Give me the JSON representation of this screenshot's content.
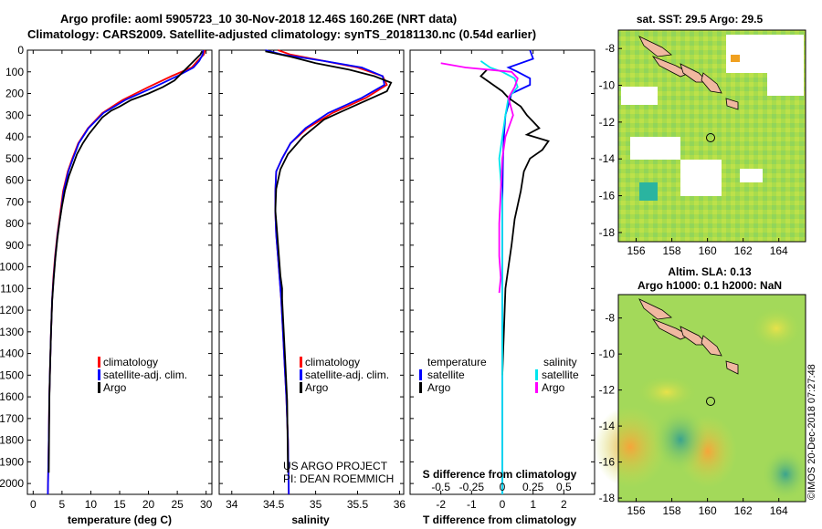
{
  "header": {
    "line1": "Argo profile: aoml 5905723_10 30-Nov-2018 12.46S 160.26E (NRT data)",
    "line2": "Climatology: CARS2009. Satellite-adjusted climatology: synTS_20181130.nc (0.54d earlier)"
  },
  "depth_ticks": [
    "0",
    "100",
    "200",
    "300",
    "400",
    "500",
    "600",
    "700",
    "800",
    "900",
    "1000",
    "1100",
    "1200",
    "1300",
    "1400",
    "1500",
    "1600",
    "1700",
    "1800",
    "1900",
    "2000"
  ],
  "colors": {
    "climatology": "#ff0000",
    "satellite": "#0000ff",
    "argo": "#000000",
    "satellite_s": "#00e5ee",
    "argo_s": "#ff00ff"
  },
  "chart_data": [
    {
      "type": "line",
      "name": "temperature-profile",
      "xlabel": "temperature (deg C)",
      "xlim": [
        -1,
        31
      ],
      "ylim": [
        0,
        2050
      ],
      "y_inverted": true,
      "xticks": [
        "0",
        "5",
        "10",
        "15",
        "20",
        "25",
        "30"
      ],
      "legend": [
        "climatology",
        "satellite-adj. clim.",
        "Argo"
      ],
      "series": [
        {
          "name": "climatology",
          "color": "#ff0000",
          "x": [
            29.8,
            29.6,
            28.5,
            27.5,
            24,
            20,
            15.5,
            12,
            9.5,
            7.8,
            6.8,
            6.0,
            5.2,
            4.7,
            4.2,
            3.8,
            3.5,
            3.3,
            3.1,
            2.95,
            2.8,
            2.7,
            2.55
          ],
          "y": [
            0,
            20,
            50,
            80,
            120,
            170,
            230,
            290,
            360,
            430,
            500,
            560,
            650,
            750,
            850,
            950,
            1050,
            1150,
            1300,
            1450,
            1600,
            1800,
            2050
          ]
        },
        {
          "name": "satellite-adj. clim.",
          "color": "#0000ff",
          "x": [
            29.5,
            29.4,
            28.8,
            27.8,
            25,
            21,
            16,
            12.2,
            9.6,
            7.9,
            6.9,
            6.1,
            5.3,
            4.8,
            4.25,
            3.85,
            3.55,
            3.3,
            3.1,
            2.95,
            2.8,
            2.7,
            2.55
          ],
          "y": [
            0,
            20,
            50,
            80,
            120,
            170,
            230,
            290,
            360,
            430,
            500,
            560,
            650,
            750,
            850,
            950,
            1050,
            1150,
            1300,
            1450,
            1600,
            1800,
            2050
          ]
        },
        {
          "name": "Argo",
          "color": "#000000",
          "x": [
            29.3,
            29.0,
            27.5,
            26.0,
            24.5,
            22.5,
            20,
            17,
            15,
            13.5,
            12,
            10.8,
            9.6,
            8.6,
            7.6,
            6.9,
            6.2,
            5.5,
            5.0,
            4.6,
            4.2,
            3.85,
            3.55,
            3.3,
            3.1,
            2.95,
            2.8,
            2.7
          ],
          "y": [
            5,
            20,
            60,
            100,
            140,
            170,
            200,
            230,
            260,
            280,
            310,
            350,
            390,
            430,
            480,
            530,
            580,
            650,
            720,
            790,
            870,
            960,
            1060,
            1160,
            1300,
            1450,
            1620,
            1950
          ]
        }
      ]
    },
    {
      "type": "line",
      "name": "salinity-profile",
      "xlabel": "salinity",
      "xlim": [
        33.85,
        36.05
      ],
      "ylim": [
        0,
        2050
      ],
      "y_inverted": true,
      "xticks": [
        "34",
        "34.5",
        "35",
        "35.5",
        "36"
      ],
      "legend": [
        "climatology",
        "satellite-adj. clim.",
        "Argo"
      ],
      "series": [
        {
          "name": "climatology",
          "color": "#ff0000",
          "x": [
            34.55,
            34.7,
            35.1,
            35.5,
            35.8,
            35.85,
            35.6,
            35.2,
            34.9,
            34.7,
            34.6,
            34.53,
            34.52,
            34.52,
            34.53,
            34.55,
            34.57,
            34.59,
            34.61,
            34.63,
            34.65,
            34.67,
            34.68
          ],
          "y": [
            0,
            20,
            50,
            80,
            120,
            160,
            220,
            290,
            360,
            430,
            500,
            560,
            650,
            750,
            850,
            950,
            1050,
            1150,
            1300,
            1450,
            1600,
            1800,
            2050
          ]
        },
        {
          "name": "satellite-adj. clim.",
          "color": "#0000ff",
          "x": [
            34.4,
            34.6,
            35.1,
            35.55,
            35.8,
            35.82,
            35.55,
            35.15,
            34.88,
            34.7,
            34.6,
            34.53,
            34.52,
            34.52,
            34.53,
            34.55,
            34.57,
            34.59,
            34.61,
            34.63,
            34.65,
            34.67,
            34.68
          ],
          "y": [
            0,
            20,
            50,
            80,
            120,
            160,
            220,
            290,
            360,
            430,
            500,
            560,
            650,
            750,
            850,
            950,
            1050,
            1150,
            1300,
            1450,
            1600,
            1800,
            2050
          ]
        },
        {
          "name": "Argo",
          "color": "#000000",
          "x": [
            34.4,
            34.7,
            35.0,
            35.4,
            35.7,
            35.9,
            35.85,
            35.5,
            35.1,
            34.85,
            34.67,
            34.58,
            34.53,
            34.52,
            34.54,
            34.56,
            34.58,
            34.6,
            34.6,
            34.62,
            34.64,
            34.66,
            34.67
          ],
          "y": [
            5,
            30,
            60,
            90,
            120,
            150,
            190,
            250,
            320,
            400,
            480,
            550,
            640,
            740,
            840,
            940,
            1040,
            1100,
            1150,
            1300,
            1450,
            1620,
            1950
          ]
        }
      ]
    },
    {
      "type": "line",
      "name": "difference-profile",
      "xlabel": "T difference from climatology",
      "xlabel_top": "S difference from climatology",
      "xlim": [
        -3,
        3
      ],
      "xticks": [
        "-2",
        "-1",
        "0",
        "1",
        "2"
      ],
      "xticks_top": [
        "-0.5",
        "-0.25",
        "0",
        "0.25",
        "0.5"
      ],
      "ylim": [
        0,
        2050
      ],
      "y_inverted": true,
      "legend_left_title": "temperature",
      "legend_right_title": "salinity",
      "legend_left": [
        "satellite",
        "Argo"
      ],
      "legend_right": [
        "satellite",
        "Argo"
      ],
      "series": [
        {
          "name": "T satellite",
          "color": "#0000ff",
          "x": [
            0.9,
            1.0,
            0.2,
            0.5,
            0.9,
            0.9,
            0.3,
            0.1,
            0.05,
            0.02,
            0.0,
            0.0,
            0.0,
            0.0,
            0.0
          ],
          "y": [
            0,
            40,
            80,
            100,
            130,
            160,
            200,
            300,
            400,
            500,
            700,
            1000,
            1400,
            1800,
            2050
          ]
        },
        {
          "name": "T Argo",
          "color": "#000000",
          "x": [
            -0.5,
            -0.7,
            -0.3,
            0.0,
            0.2,
            0.6,
            0.8,
            1.0,
            1.2,
            0.8,
            1.5,
            1.3,
            0.9,
            0.7,
            0.6,
            0.4,
            0.3,
            0.2,
            0.1,
            0.05,
            0.0
          ],
          "y": [
            90,
            120,
            160,
            190,
            220,
            260,
            300,
            330,
            360,
            390,
            420,
            460,
            500,
            560,
            650,
            780,
            900,
            1000,
            1100,
            1300,
            1500
          ]
        },
        {
          "name": "S satellite",
          "color": "#00e5ee",
          "x": [
            -0.7,
            -0.4,
            0.0,
            0.4,
            0.5,
            0.2,
            0.1,
            0.0,
            -0.1,
            0.0,
            0.0,
            0.0,
            0.0,
            0.0
          ],
          "y": [
            50,
            80,
            100,
            130,
            170,
            220,
            300,
            400,
            500,
            700,
            1000,
            1400,
            1800,
            2050
          ]
        },
        {
          "name": "S Argo",
          "color": "#ff00ff",
          "x": [
            -2.0,
            -1.2,
            0.3,
            0.5,
            0.4,
            0.2,
            0.35,
            0.1,
            0.0,
            -0.05,
            -0.1,
            -0.1,
            -0.05,
            -0.1
          ],
          "y": [
            60,
            80,
            100,
            130,
            170,
            220,
            300,
            400,
            500,
            650,
            800,
            950,
            1050,
            1120
          ]
        }
      ]
    }
  ],
  "maps": [
    {
      "title": "sat. SST: 29.5 Argo: 29.5",
      "xticks": [
        "156",
        "158",
        "160",
        "162",
        "164"
      ],
      "yticks": [
        "-8",
        "-10",
        "-12",
        "-14",
        "-16",
        "-18"
      ]
    },
    {
      "title1": "Altim. SLA: 0.13",
      "title2": "Argo h1000: 0.1 h2000: NaN",
      "xticks": [
        "156",
        "158",
        "160",
        "162",
        "164"
      ],
      "yticks": [
        "-8",
        "-10",
        "-12",
        "-14",
        "-16",
        "-18"
      ]
    }
  ],
  "credits": {
    "project": "US ARGO PROJECT",
    "pi": "PI: DEAN ROEMMICH",
    "stamp": "©IMOS 20-Dec-2018 07:27:48"
  }
}
